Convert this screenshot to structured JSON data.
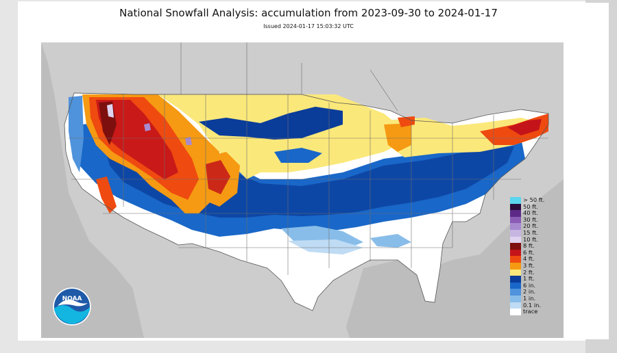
{
  "header": {
    "title": "National Snowfall Analysis: accumulation from 2023-09-30 to 2024-01-17",
    "issued": "Issued 2024-01-17 15:03:32 UTC"
  },
  "logo": {
    "text": "NOAA"
  },
  "legend": {
    "items": [
      {
        "label": "> 50 ft.",
        "color": "#5ad5ee"
      },
      {
        "label": "50 ft.",
        "color": "#2a0c3a"
      },
      {
        "label": "40 ft.",
        "color": "#5c2a86"
      },
      {
        "label": "30 ft.",
        "color": "#8a5cb6"
      },
      {
        "label": "20 ft.",
        "color": "#a88ad0"
      },
      {
        "label": "15 ft.",
        "color": "#c7b5e2"
      },
      {
        "label": "10 ft.",
        "color": "#dfd3f0"
      },
      {
        "label": "8 ft.",
        "color": "#7e0f0f"
      },
      {
        "label": "6 ft.",
        "color": "#c4141a"
      },
      {
        "label": "4 ft.",
        "color": "#ef4a10"
      },
      {
        "label": "3 ft.",
        "color": "#f59a12"
      },
      {
        "label": "2 ft.",
        "color": "#fbe87a"
      },
      {
        "label": "1 ft.",
        "color": "#0a3c9a"
      },
      {
        "label": "6 in.",
        "color": "#1967c8"
      },
      {
        "label": "2 in.",
        "color": "#4f93dc"
      },
      {
        "label": "1 in.",
        "color": "#89bde9"
      },
      {
        "label": "0.1 in.",
        "color": "#bfdcf4"
      },
      {
        "label": "trace",
        "color": "#ffffff"
      }
    ]
  }
}
